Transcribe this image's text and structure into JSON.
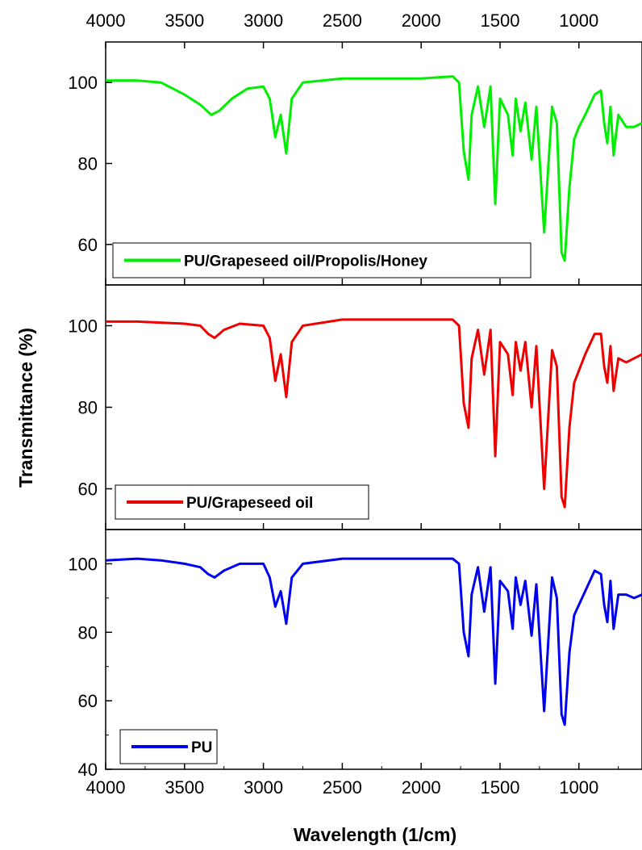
{
  "chart_data": {
    "type": "line",
    "xlabel": "Wavelength (1/cm)",
    "ylabel": "Transmittance (%)",
    "xlim": [
      4000,
      600
    ],
    "x_ticks": [
      4000,
      3500,
      3000,
      2500,
      2000,
      1500,
      1000
    ],
    "x_tick_labels": [
      "4000",
      "3500",
      "3000",
      "2500",
      "2000",
      "1500",
      "1000"
    ],
    "y_ticks": [
      40,
      60,
      80,
      100
    ],
    "grid": false,
    "panels": [
      {
        "ylim": [
          50,
          110
        ],
        "y_tick_labels": [
          "60",
          "80",
          "100"
        ],
        "legend_position": "bottom-left",
        "series": [
          {
            "name": "PU/Grapeseed oil/Propolis/Honey",
            "color": "#00ee00",
            "points": [
              [
                4000,
                100.5
              ],
              [
                3800,
                100.5
              ],
              [
                3650,
                100
              ],
              [
                3500,
                97
              ],
              [
                3400,
                94.5
              ],
              [
                3330,
                92
              ],
              [
                3280,
                93
              ],
              [
                3200,
                96
              ],
              [
                3100,
                98.5
              ],
              [
                3000,
                99
              ],
              [
                2960,
                96
              ],
              [
                2925,
                86.5
              ],
              [
                2890,
                92
              ],
              [
                2855,
                82.5
              ],
              [
                2820,
                96
              ],
              [
                2750,
                100
              ],
              [
                2500,
                101
              ],
              [
                2000,
                101
              ],
              [
                1800,
                101.5
              ],
              [
                1760,
                100
              ],
              [
                1730,
                83
              ],
              [
                1700,
                76
              ],
              [
                1680,
                92
              ],
              [
                1640,
                99
              ],
              [
                1600,
                89
              ],
              [
                1560,
                99
              ],
              [
                1530,
                70
              ],
              [
                1500,
                96
              ],
              [
                1450,
                92
              ],
              [
                1420,
                82
              ],
              [
                1400,
                96
              ],
              [
                1370,
                88
              ],
              [
                1340,
                95
              ],
              [
                1300,
                81
              ],
              [
                1270,
                94
              ],
              [
                1220,
                63
              ],
              [
                1170,
                94
              ],
              [
                1140,
                90
              ],
              [
                1110,
                58
              ],
              [
                1090,
                56
              ],
              [
                1060,
                74
              ],
              [
                1030,
                86
              ],
              [
                1000,
                89
              ],
              [
                960,
                92
              ],
              [
                900,
                97
              ],
              [
                860,
                98
              ],
              [
                840,
                90
              ],
              [
                820,
                85
              ],
              [
                800,
                94
              ],
              [
                780,
                82
              ],
              [
                750,
                92
              ],
              [
                700,
                89
              ],
              [
                650,
                89
              ],
              [
                600,
                90
              ]
            ]
          }
        ]
      },
      {
        "ylim": [
          50,
          110
        ],
        "y_tick_labels": [
          "60",
          "80",
          "100"
        ],
        "legend_position": "bottom-left",
        "series": [
          {
            "name": "PU/Grapeseed oil",
            "color": "#ee0000",
            "points": [
              [
                4000,
                101
              ],
              [
                3800,
                101
              ],
              [
                3500,
                100.5
              ],
              [
                3400,
                100
              ],
              [
                3350,
                98
              ],
              [
                3310,
                97
              ],
              [
                3250,
                99
              ],
              [
                3150,
                100.5
              ],
              [
                3000,
                100
              ],
              [
                2960,
                97
              ],
              [
                2925,
                86.5
              ],
              [
                2890,
                93
              ],
              [
                2855,
                82.5
              ],
              [
                2820,
                96
              ],
              [
                2750,
                100
              ],
              [
                2500,
                101.5
              ],
              [
                2000,
                101.5
              ],
              [
                1800,
                101.5
              ],
              [
                1760,
                100
              ],
              [
                1730,
                81
              ],
              [
                1700,
                75
              ],
              [
                1680,
                92
              ],
              [
                1640,
                99
              ],
              [
                1600,
                88
              ],
              [
                1560,
                99
              ],
              [
                1530,
                68
              ],
              [
                1500,
                96
              ],
              [
                1450,
                93
              ],
              [
                1420,
                83
              ],
              [
                1400,
                96
              ],
              [
                1370,
                89
              ],
              [
                1340,
                96
              ],
              [
                1300,
                80
              ],
              [
                1270,
                95
              ],
              [
                1220,
                60
              ],
              [
                1170,
                94
              ],
              [
                1140,
                90
              ],
              [
                1110,
                58
              ],
              [
                1090,
                55.5
              ],
              [
                1060,
                75
              ],
              [
                1030,
                86
              ],
              [
                1000,
                89
              ],
              [
                960,
                93
              ],
              [
                900,
                98
              ],
              [
                860,
                98
              ],
              [
                840,
                90
              ],
              [
                820,
                86
              ],
              [
                800,
                95
              ],
              [
                780,
                84
              ],
              [
                750,
                92
              ],
              [
                700,
                91
              ],
              [
                650,
                92
              ],
              [
                600,
                93
              ]
            ]
          }
        ]
      },
      {
        "ylim": [
          40,
          110
        ],
        "y_tick_labels": [
          "40",
          "60",
          "80",
          "100"
        ],
        "legend_position": "bottom-left",
        "series": [
          {
            "name": "PU",
            "color": "#0000ee",
            "points": [
              [
                4000,
                101
              ],
              [
                3800,
                101.5
              ],
              [
                3650,
                101
              ],
              [
                3500,
                100
              ],
              [
                3400,
                99
              ],
              [
                3350,
                97
              ],
              [
                3310,
                96
              ],
              [
                3250,
                98
              ],
              [
                3150,
                100
              ],
              [
                3000,
                100
              ],
              [
                2960,
                96
              ],
              [
                2925,
                87.5
              ],
              [
                2890,
                92
              ],
              [
                2855,
                82.5
              ],
              [
                2820,
                96
              ],
              [
                2750,
                100
              ],
              [
                2500,
                101.5
              ],
              [
                2000,
                101.5
              ],
              [
                1800,
                101.5
              ],
              [
                1760,
                100
              ],
              [
                1730,
                80
              ],
              [
                1700,
                73
              ],
              [
                1680,
                91
              ],
              [
                1640,
                99
              ],
              [
                1600,
                86
              ],
              [
                1560,
                99
              ],
              [
                1530,
                65
              ],
              [
                1500,
                95
              ],
              [
                1450,
                92
              ],
              [
                1420,
                81
              ],
              [
                1400,
                96
              ],
              [
                1370,
                88
              ],
              [
                1340,
                95
              ],
              [
                1300,
                79
              ],
              [
                1270,
                94
              ],
              [
                1220,
                57
              ],
              [
                1170,
                96
              ],
              [
                1140,
                90
              ],
              [
                1110,
                56
              ],
              [
                1090,
                53
              ],
              [
                1060,
                74
              ],
              [
                1030,
                85
              ],
              [
                1000,
                88
              ],
              [
                960,
                92
              ],
              [
                900,
                98
              ],
              [
                860,
                97
              ],
              [
                840,
                88
              ],
              [
                820,
                83
              ],
              [
                800,
                95
              ],
              [
                780,
                81
              ],
              [
                750,
                91
              ],
              [
                700,
                91
              ],
              [
                650,
                90
              ],
              [
                600,
                91
              ]
            ]
          }
        ]
      }
    ]
  }
}
